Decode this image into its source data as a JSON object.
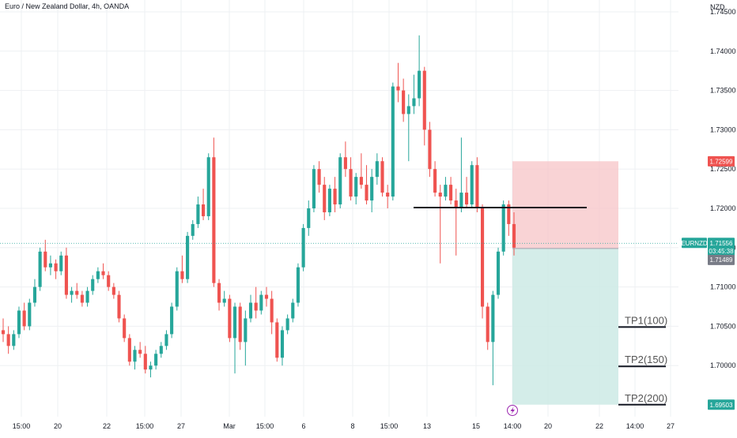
{
  "header": {
    "title": "Euro / New Zealand Dollar, 4h, OANDA",
    "currency": "NZD"
  },
  "colors": {
    "up": "#26a69a",
    "down": "#ef5350",
    "risk_zone": "#f7c4c7",
    "reward_zone": "#cdeae5",
    "grid": "#eef0f3",
    "price_line": "#26a69a"
  },
  "icons": {
    "event_marker": "lightning-icon"
  },
  "chart_data": {
    "type": "candlestick",
    "title": "Euro / New Zealand Dollar, 4h, OANDA",
    "y_unit": "NZD",
    "ylim": [
      1.6935,
      1.7465
    ],
    "y_ticks": [
      "1.74500",
      "1.74000",
      "1.73500",
      "1.73000",
      "1.72500",
      "1.72000",
      "1.71500",
      "1.71000",
      "1.70500",
      "1.70000"
    ],
    "x_ticks": [
      "15:00",
      "20",
      "22",
      "15:00",
      "27",
      "Mar",
      "15:00",
      "6",
      "8",
      "15:00",
      "13",
      "15",
      "14:00",
      "20",
      "22",
      "14:00",
      "27"
    ],
    "grid": true,
    "candles": [
      [
        1.7045,
        1.706,
        1.703,
        1.704
      ],
      [
        1.704,
        1.705,
        1.7015,
        1.7025
      ],
      [
        1.7025,
        1.7045,
        1.702,
        1.704
      ],
      [
        1.704,
        1.7075,
        1.7035,
        1.707
      ],
      [
        1.707,
        1.708,
        1.7045,
        1.705
      ],
      [
        1.705,
        1.7085,
        1.7045,
        1.708
      ],
      [
        1.708,
        1.711,
        1.7075,
        1.71
      ],
      [
        1.71,
        1.715,
        1.7095,
        1.7145
      ],
      [
        1.7145,
        1.716,
        1.712,
        1.7125
      ],
      [
        1.7125,
        1.714,
        1.7115,
        1.713
      ],
      [
        1.713,
        1.7135,
        1.711,
        1.712
      ],
      [
        1.712,
        1.7145,
        1.7115,
        1.714
      ],
      [
        1.714,
        1.715,
        1.7085,
        1.709
      ],
      [
        1.709,
        1.71,
        1.708,
        1.7095
      ],
      [
        1.7095,
        1.7105,
        1.7085,
        1.709
      ],
      [
        1.709,
        1.7095,
        1.7075,
        1.708
      ],
      [
        1.708,
        1.71,
        1.7075,
        1.7095
      ],
      [
        1.7095,
        1.7115,
        1.709,
        1.711
      ],
      [
        1.711,
        1.7125,
        1.7105,
        1.712
      ],
      [
        1.712,
        1.713,
        1.711,
        1.7115
      ],
      [
        1.7115,
        1.712,
        1.7095,
        1.71
      ],
      [
        1.71,
        1.7105,
        1.7085,
        1.709
      ],
      [
        1.709,
        1.7095,
        1.7055,
        1.706
      ],
      [
        1.706,
        1.7065,
        1.703,
        1.7035
      ],
      [
        1.7035,
        1.704,
        1.7,
        1.7005
      ],
      [
        1.7005,
        1.7025,
        1.6995,
        1.702
      ],
      [
        1.702,
        1.703,
        1.701,
        1.7015
      ],
      [
        1.7015,
        1.7025,
        1.699,
        1.6995
      ],
      [
        1.6995,
        1.7005,
        1.6985,
        1.7
      ],
      [
        1.7,
        1.702,
        1.6995,
        1.7015
      ],
      [
        1.7015,
        1.703,
        1.701,
        1.7025
      ],
      [
        1.7025,
        1.7045,
        1.702,
        1.704
      ],
      [
        1.704,
        1.708,
        1.7035,
        1.7075
      ],
      [
        1.7075,
        1.7125,
        1.707,
        1.712
      ],
      [
        1.712,
        1.714,
        1.7105,
        1.711
      ],
      [
        1.711,
        1.717,
        1.7105,
        1.7165
      ],
      [
        1.7165,
        1.7185,
        1.716,
        1.718
      ],
      [
        1.718,
        1.7215,
        1.7175,
        1.7205
      ],
      [
        1.7205,
        1.7225,
        1.7185,
        1.719
      ],
      [
        1.719,
        1.727,
        1.7185,
        1.7265
      ],
      [
        1.7265,
        1.729,
        1.71,
        1.7105
      ],
      [
        1.7105,
        1.711,
        1.707,
        1.708
      ],
      [
        1.708,
        1.7095,
        1.7075,
        1.7085
      ],
      [
        1.7085,
        1.709,
        1.703,
        1.7035
      ],
      [
        1.7035,
        1.708,
        1.699,
        1.7075
      ],
      [
        1.7075,
        1.708,
        1.702,
        1.703
      ],
      [
        1.703,
        1.707,
        1.7,
        1.706
      ],
      [
        1.706,
        1.709,
        1.7055,
        1.708
      ],
      [
        1.708,
        1.71,
        1.706,
        1.707
      ],
      [
        1.707,
        1.7095,
        1.7065,
        1.709
      ],
      [
        1.709,
        1.71,
        1.7075,
        1.7085
      ],
      [
        1.7085,
        1.7095,
        1.704,
        1.7055
      ],
      [
        1.7055,
        1.706,
        1.7005,
        1.701
      ],
      [
        1.701,
        1.705,
        1.7,
        1.7045
      ],
      [
        1.7045,
        1.7065,
        1.704,
        1.706
      ],
      [
        1.706,
        1.7085,
        1.7055,
        1.708
      ],
      [
        1.708,
        1.713,
        1.7075,
        1.7125
      ],
      [
        1.7125,
        1.718,
        1.712,
        1.7175
      ],
      [
        1.7175,
        1.721,
        1.7165,
        1.72
      ],
      [
        1.72,
        1.7255,
        1.7195,
        1.725
      ],
      [
        1.725,
        1.726,
        1.722,
        1.723
      ],
      [
        1.723,
        1.724,
        1.7185,
        1.7195
      ],
      [
        1.7195,
        1.723,
        1.719,
        1.7225
      ],
      [
        1.7225,
        1.724,
        1.7195,
        1.7205
      ],
      [
        1.7205,
        1.727,
        1.72,
        1.7265
      ],
      [
        1.7265,
        1.7285,
        1.724,
        1.725
      ],
      [
        1.725,
        1.7265,
        1.721,
        1.7215
      ],
      [
        1.7215,
        1.7245,
        1.7205,
        1.724
      ],
      [
        1.724,
        1.727,
        1.7225,
        1.723
      ],
      [
        1.723,
        1.7255,
        1.7205,
        1.721
      ],
      [
        1.721,
        1.725,
        1.7195,
        1.724
      ],
      [
        1.724,
        1.727,
        1.723,
        1.726
      ],
      [
        1.726,
        1.7265,
        1.7215,
        1.722
      ],
      [
        1.722,
        1.723,
        1.72,
        1.7215
      ],
      [
        1.7215,
        1.736,
        1.721,
        1.7355
      ],
      [
        1.7355,
        1.7385,
        1.7335,
        1.735
      ],
      [
        1.735,
        1.7365,
        1.731,
        1.732
      ],
      [
        1.732,
        1.7345,
        1.726,
        1.733
      ],
      [
        1.733,
        1.737,
        1.732,
        1.734
      ],
      [
        1.734,
        1.742,
        1.733,
        1.7375
      ],
      [
        1.7375,
        1.738,
        1.728,
        1.73
      ],
      [
        1.73,
        1.731,
        1.724,
        1.725
      ],
      [
        1.725,
        1.726,
        1.7215,
        1.722
      ],
      [
        1.722,
        1.723,
        1.713,
        1.7215
      ],
      [
        1.7215,
        1.724,
        1.721,
        1.723
      ],
      [
        1.723,
        1.724,
        1.7205,
        1.721
      ],
      [
        1.721,
        1.7225,
        1.714,
        1.72
      ],
      [
        1.72,
        1.729,
        1.7195,
        1.722
      ],
      [
        1.722,
        1.724,
        1.72,
        1.7205
      ],
      [
        1.7205,
        1.726,
        1.72,
        1.7255
      ],
      [
        1.7255,
        1.7265,
        1.7195,
        1.72
      ],
      [
        1.72,
        1.7205,
        1.706,
        1.7075
      ],
      [
        1.7075,
        1.708,
        1.702,
        1.703
      ],
      [
        1.703,
        1.7095,
        1.6975,
        1.709
      ],
      [
        1.709,
        1.715,
        1.7085,
        1.7145
      ],
      [
        1.7145,
        1.721,
        1.714,
        1.7205
      ],
      [
        1.7205,
        1.721,
        1.7165,
        1.718
      ],
      [
        1.718,
        1.7195,
        1.714,
        1.715
      ]
    ],
    "annotations": {
      "stop_loss": 1.72599,
      "entry": 1.71489,
      "current": 1.71556,
      "countdown": "03:45:38",
      "symbol": "EURNZD",
      "horizontal_level": 1.7201,
      "take_profits": [
        {
          "label": "TP1(100)",
          "price": 1.7049
        },
        {
          "label": "TP2(150)",
          "price": 1.6999
        },
        {
          "label": "TP2(200)",
          "price": 1.69503
        }
      ],
      "badge_labels": {
        "stop_loss": "1.72599",
        "current": "1.71556",
        "entry": "1.71489",
        "target": "1.69503"
      }
    }
  }
}
